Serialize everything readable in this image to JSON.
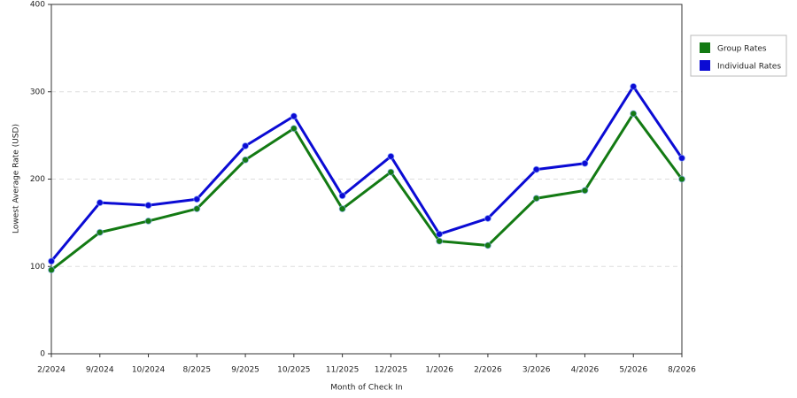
{
  "chart_data": {
    "type": "line",
    "x_label": "Month of Check In",
    "y_label": "Lowest Average Rate (USD)",
    "categories": [
      "2/2024",
      "9/2024",
      "10/2024",
      "8/2025",
      "9/2025",
      "10/2025",
      "11/2025",
      "12/2025",
      "1/2026",
      "2/2026",
      "3/2026",
      "4/2026",
      "5/2026",
      "8/2026"
    ],
    "series": [
      {
        "name": "Group Rates",
        "color": "#137a13",
        "values": [
          96,
          139,
          152,
          166,
          222,
          258,
          166,
          208,
          129,
          124,
          178,
          187,
          275,
          200
        ]
      },
      {
        "name": "Individual Rates",
        "color": "#0b0bd4",
        "values": [
          106,
          173,
          170,
          177,
          238,
          272,
          181,
          226,
          137,
          155,
          211,
          218,
          306,
          224
        ]
      }
    ],
    "ylim": [
      0,
      400
    ],
    "yticks": [
      0,
      100,
      200,
      300,
      400
    ],
    "grid": true,
    "legend": "right"
  }
}
